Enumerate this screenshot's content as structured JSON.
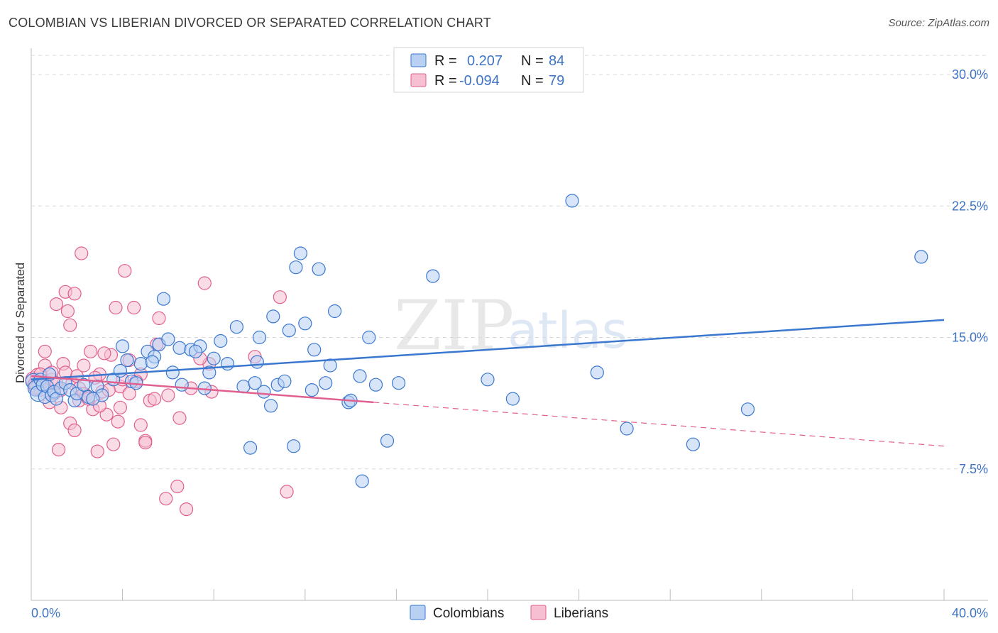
{
  "header": {
    "title": "COLOMBIAN VS LIBERIAN DIVORCED OR SEPARATED CORRELATION CHART",
    "source": "Source: ZipAtlas.com"
  },
  "colors": {
    "blue": "#3a78d0",
    "blue_fill": "#b8d0f2",
    "pink": "#e0608f",
    "pink_fill": "#f6c0d2",
    "grid": "#d8d8d8",
    "tick_label": "#3f74c4"
  },
  "legend": {
    "rows": [
      {
        "r_label": "R = ",
        "r_value": "0.207",
        "n_label": "N = ",
        "n_value": "84"
      },
      {
        "r_label": "R = ",
        "r_value": "-0.094",
        "n_label": "N = ",
        "n_value": "79"
      }
    ]
  },
  "watermark": {
    "zip": "ZIP",
    "atlas": "atlas"
  },
  "chart_data": {
    "type": "scatter",
    "title": "COLOMBIAN VS LIBERIAN DIVORCED OR SEPARATED CORRELATION CHART",
    "xlabel": "",
    "ylabel": "Divorced or Separated",
    "xlim": [
      0,
      40
    ],
    "ylim": [
      0,
      31.5
    ],
    "x_tick_labels": [
      "0.0%",
      "40.0%"
    ],
    "y_ticks": [
      7.5,
      15.0,
      22.5,
      30.0
    ],
    "y_tick_labels": [
      "7.5%",
      "15.0%",
      "22.5%",
      "30.0%"
    ],
    "grid": true,
    "legend_position": "bottom-center",
    "series": [
      {
        "name": "Colombians",
        "color": "#3a78d0",
        "r": 0.207,
        "n": 84,
        "trend": {
          "x0": 0,
          "y0": 12.6,
          "x1": 40,
          "y1": 16.0,
          "dashed_from": null
        },
        "points": [
          [
            0.1,
            12.5
          ],
          [
            0.2,
            12.1
          ],
          [
            0.3,
            11.8
          ],
          [
            0.4,
            12.6
          ],
          [
            0.5,
            12.3
          ],
          [
            0.6,
            11.6
          ],
          [
            0.7,
            12.2
          ],
          [
            0.9,
            11.7
          ],
          [
            1.0,
            11.9
          ],
          [
            1.1,
            11.5
          ],
          [
            1.3,
            12.1
          ],
          [
            1.5,
            12.4
          ],
          [
            1.7,
            12.0
          ],
          [
            1.9,
            11.4
          ],
          [
            2.0,
            11.8
          ],
          [
            2.3,
            12.3
          ],
          [
            2.5,
            11.6
          ],
          [
            2.9,
            12.2
          ],
          [
            3.1,
            11.7
          ],
          [
            3.6,
            12.6
          ],
          [
            3.9,
            13.1
          ],
          [
            4.0,
            14.5
          ],
          [
            4.2,
            13.7
          ],
          [
            4.4,
            12.5
          ],
          [
            4.8,
            13.5
          ],
          [
            5.1,
            14.2
          ],
          [
            5.4,
            13.9
          ],
          [
            5.6,
            14.6
          ],
          [
            5.8,
            17.2
          ],
          [
            6.0,
            14.9
          ],
          [
            6.2,
            13.0
          ],
          [
            6.5,
            14.4
          ],
          [
            6.6,
            12.3
          ],
          [
            7.0,
            14.3
          ],
          [
            7.4,
            14.5
          ],
          [
            7.6,
            12.1
          ],
          [
            7.8,
            13.0
          ],
          [
            8.0,
            13.8
          ],
          [
            8.3,
            14.8
          ],
          [
            8.6,
            13.5
          ],
          [
            9.0,
            15.6
          ],
          [
            9.3,
            12.2
          ],
          [
            9.6,
            8.7
          ],
          [
            9.9,
            13.6
          ],
          [
            10.0,
            15.0
          ],
          [
            10.2,
            11.9
          ],
          [
            10.5,
            11.1
          ],
          [
            10.6,
            16.2
          ],
          [
            10.8,
            12.3
          ],
          [
            11.1,
            12.5
          ],
          [
            11.3,
            15.4
          ],
          [
            11.5,
            8.8
          ],
          [
            11.6,
            19.0
          ],
          [
            11.8,
            19.8
          ],
          [
            12.0,
            15.8
          ],
          [
            12.3,
            12.0
          ],
          [
            12.6,
            18.9
          ],
          [
            12.9,
            12.4
          ],
          [
            13.1,
            13.4
          ],
          [
            13.3,
            16.5
          ],
          [
            13.9,
            11.3
          ],
          [
            14.4,
            12.8
          ],
          [
            15.1,
            12.3
          ],
          [
            15.6,
            9.1
          ],
          [
            16.1,
            12.4
          ],
          [
            17.6,
            18.5
          ],
          [
            20.0,
            12.6
          ],
          [
            21.1,
            11.5
          ],
          [
            23.7,
            22.8
          ],
          [
            24.8,
            13.0
          ],
          [
            26.1,
            9.8
          ],
          [
            29.0,
            8.9
          ],
          [
            31.4,
            10.9
          ],
          [
            39.0,
            19.6
          ],
          [
            0.8,
            12.9
          ],
          [
            2.7,
            11.5
          ],
          [
            4.6,
            12.4
          ],
          [
            5.3,
            13.6
          ],
          [
            7.2,
            14.2
          ],
          [
            9.8,
            12.4
          ],
          [
            12.4,
            14.3
          ],
          [
            14.8,
            15.0
          ],
          [
            14.0,
            11.4
          ],
          [
            14.5,
            6.8
          ]
        ]
      },
      {
        "name": "Liberians",
        "color": "#e0608f",
        "r": -0.094,
        "n": 79,
        "trend": {
          "x0": 0,
          "y0": 12.8,
          "x1": 40,
          "y1": 8.8,
          "dashed_from": 15.0
        },
        "points": [
          [
            0.1,
            12.6
          ],
          [
            0.2,
            12.3
          ],
          [
            0.3,
            12.8
          ],
          [
            0.4,
            12.0
          ],
          [
            0.5,
            12.5
          ],
          [
            0.6,
            13.4
          ],
          [
            0.7,
            12.2
          ],
          [
            0.8,
            11.3
          ],
          [
            0.9,
            12.6
          ],
          [
            1.0,
            11.8
          ],
          [
            1.1,
            16.9
          ],
          [
            1.2,
            8.6
          ],
          [
            1.3,
            12.0
          ],
          [
            1.4,
            13.5
          ],
          [
            1.5,
            17.6
          ],
          [
            1.6,
            16.5
          ],
          [
            1.7,
            10.1
          ],
          [
            1.8,
            12.4
          ],
          [
            1.9,
            17.5
          ],
          [
            2.0,
            12.8
          ],
          [
            2.1,
            11.4
          ],
          [
            2.2,
            19.8
          ],
          [
            2.3,
            13.4
          ],
          [
            2.4,
            11.7
          ],
          [
            2.6,
            14.2
          ],
          [
            2.7,
            10.9
          ],
          [
            2.9,
            8.5
          ],
          [
            3.0,
            12.9
          ],
          [
            3.1,
            11.9
          ],
          [
            3.3,
            10.6
          ],
          [
            3.5,
            14.0
          ],
          [
            3.6,
            8.9
          ],
          [
            3.8,
            10.2
          ],
          [
            3.9,
            12.2
          ],
          [
            4.1,
            18.8
          ],
          [
            4.3,
            13.7
          ],
          [
            4.5,
            16.7
          ],
          [
            4.8,
            12.9
          ],
          [
            5.0,
            9.1
          ],
          [
            5.2,
            11.4
          ],
          [
            5.4,
            11.5
          ],
          [
            5.6,
            16.1
          ],
          [
            5.9,
            5.8
          ],
          [
            6.4,
            6.5
          ],
          [
            6.8,
            5.2
          ],
          [
            7.6,
            18.1
          ],
          [
            7.8,
            13.5
          ],
          [
            9.8,
            13.9
          ],
          [
            10.9,
            17.3
          ],
          [
            11.2,
            6.2
          ],
          [
            0.6,
            14.2
          ],
          [
            0.9,
            13.0
          ],
          [
            1.1,
            12.4
          ],
          [
            1.3,
            11.0
          ],
          [
            1.5,
            13.0
          ],
          [
            1.7,
            15.7
          ],
          [
            1.9,
            9.7
          ],
          [
            2.1,
            12.1
          ],
          [
            2.3,
            11.8
          ],
          [
            2.5,
            11.5
          ],
          [
            2.8,
            12.7
          ],
          [
            3.0,
            11.1
          ],
          [
            3.2,
            14.1
          ],
          [
            3.4,
            12.0
          ],
          [
            3.7,
            16.7
          ],
          [
            3.9,
            11.0
          ],
          [
            4.0,
            12.6
          ],
          [
            4.3,
            11.8
          ],
          [
            4.6,
            12.5
          ],
          [
            4.8,
            10.0
          ],
          [
            5.0,
            9.0
          ],
          [
            5.5,
            14.6
          ],
          [
            6.0,
            11.7
          ],
          [
            6.5,
            10.4
          ],
          [
            7.0,
            12.1
          ],
          [
            7.4,
            13.8
          ],
          [
            7.9,
            11.9
          ],
          [
            0.4,
            12.9
          ],
          [
            0.2,
            12.1
          ]
        ]
      }
    ]
  },
  "bottom_legend": [
    "Colombians",
    "Liberians"
  ]
}
